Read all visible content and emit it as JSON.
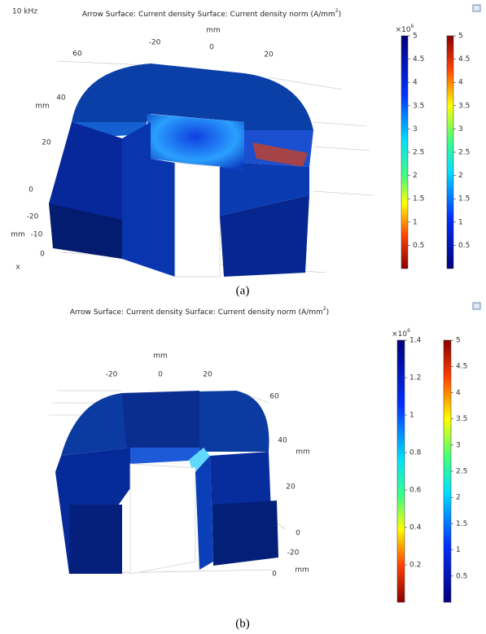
{
  "panel_a": {
    "frequency": "10 kHz",
    "title": {
      "text": "Arrow Surface: Current density  Surface: Current density norm (A/mm",
      "superscript": "2",
      "close": ")"
    },
    "axis_labels": [
      "mm",
      "-20",
      "0",
      "20",
      "60",
      "40",
      "mm",
      "20",
      "0",
      "-20",
      "mm",
      "-10",
      "0",
      "x"
    ],
    "colorbars": [
      {
        "multiplier": "×10",
        "exponent": "6",
        "lim": [
          0,
          5
        ],
        "ticks": [
          0.5,
          1,
          1.5,
          2,
          2.5,
          3,
          3.5,
          4,
          4.5,
          5
        ]
      },
      {
        "lim": [
          0,
          5
        ],
        "ticks": [
          0.5,
          1,
          1.5,
          2,
          2.5,
          3,
          3.5,
          4,
          4.5,
          5
        ]
      }
    ],
    "caption": "(a)"
  },
  "panel_b": {
    "title": {
      "text": "Arrow Surface: Current density  Surface: Current density norm (A/mm",
      "superscript": "2",
      "close": ")"
    },
    "axis_labels": [
      "mm",
      "-20",
      "0",
      "20",
      "60",
      "40",
      "mm",
      "20",
      "0",
      "-20",
      "mm",
      "0"
    ],
    "colorbars": [
      {
        "multiplier": "×10",
        "exponent": "6",
        "lim": [
          0,
          1.4
        ],
        "ticks": [
          0.2,
          0.4,
          0.6,
          0.8,
          1,
          1.2,
          1.4
        ]
      },
      {
        "lim": [
          0,
          5
        ],
        "ticks": [
          0.5,
          1,
          1.5,
          2,
          2.5,
          3,
          3.5,
          4,
          4.5,
          5
        ]
      }
    ],
    "caption": "(b)"
  }
}
